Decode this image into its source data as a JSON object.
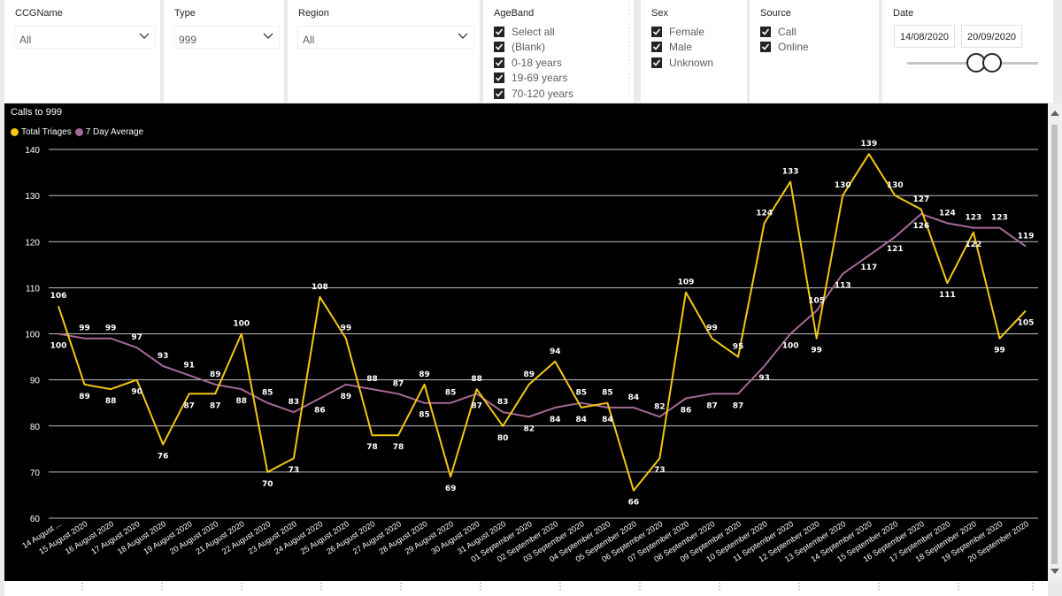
{
  "slicers": {
    "ccg": {
      "title": "CCGName",
      "value": "All"
    },
    "type": {
      "title": "Type",
      "value": "999"
    },
    "region": {
      "title": "Region",
      "value": "All"
    },
    "ageband": {
      "title": "AgeBand",
      "options": [
        "Select all",
        "(Blank)",
        "0-18 years",
        "19-69 years",
        "70-120 years"
      ]
    },
    "sex": {
      "title": "Sex",
      "options": [
        "Female",
        "Male",
        "Unknown"
      ]
    },
    "source": {
      "title": "Source",
      "options": [
        "Call",
        "Online"
      ]
    },
    "date": {
      "title": "Date",
      "start": "14/08/2020",
      "end": "20/09/2020"
    }
  },
  "icons": {
    "dropdown": "chevron-down-icon",
    "checkbox": "checkmark-icon",
    "scroll": "scrollbar"
  },
  "colors": {
    "total_triages": "#F2C811",
    "seven_day_avg": "#A66999",
    "background": "#000000",
    "grid": "#ffffff"
  },
  "chart_data": {
    "type": "line",
    "title": "Calls to 999",
    "ylim": [
      60,
      140
    ],
    "yticks": [
      60,
      70,
      80,
      90,
      100,
      110,
      120,
      130,
      140
    ],
    "grid": true,
    "legend_position": "top-left",
    "categories": [
      "14 August ...",
      "15 August 2020",
      "16 August 2020",
      "17 August 2020",
      "18 August 2020",
      "19 August 2020",
      "20 August 2020",
      "21 August 2020",
      "22 August 2020",
      "23 August 2020",
      "24 August 2020",
      "25 August 2020",
      "26 August 2020",
      "27 August 2020",
      "28 August 2020",
      "29 August 2020",
      "30 August 2020",
      "31 August 2020",
      "01 September 2020",
      "02 September 2020",
      "03 September 2020",
      "04 September 2020",
      "05 September 2020",
      "06 September 2020",
      "07 September 2020",
      "08 September 2020",
      "09 September 2020",
      "10 September 2020",
      "11 September 2020",
      "12 September 2020",
      "13 September 2020",
      "14 September 2020",
      "15 September 2020",
      "16 September 2020",
      "17 September 2020",
      "18 September 2020",
      "19 September 2020",
      "20 September 2020"
    ],
    "series": [
      {
        "name": "Total Triages",
        "values": [
          106,
          89,
          88,
          90,
          76,
          87,
          87,
          100,
          70,
          73,
          108,
          99,
          78,
          78,
          89,
          69,
          88,
          80,
          89,
          94,
          84,
          85,
          66,
          73,
          109,
          99,
          95,
          124,
          133,
          99,
          130,
          139,
          130,
          127,
          111,
          122,
          99,
          105
        ]
      },
      {
        "name": "7 Day Average",
        "values": [
          100,
          99,
          99,
          97,
          93,
          91,
          89,
          88,
          85,
          83,
          86,
          89,
          88,
          87,
          85,
          85,
          87,
          83,
          82,
          84,
          85,
          84,
          84,
          82,
          86,
          87,
          87,
          93,
          100,
          105,
          113,
          117,
          121,
          126,
          124,
          123,
          123,
          119
        ]
      }
    ]
  }
}
